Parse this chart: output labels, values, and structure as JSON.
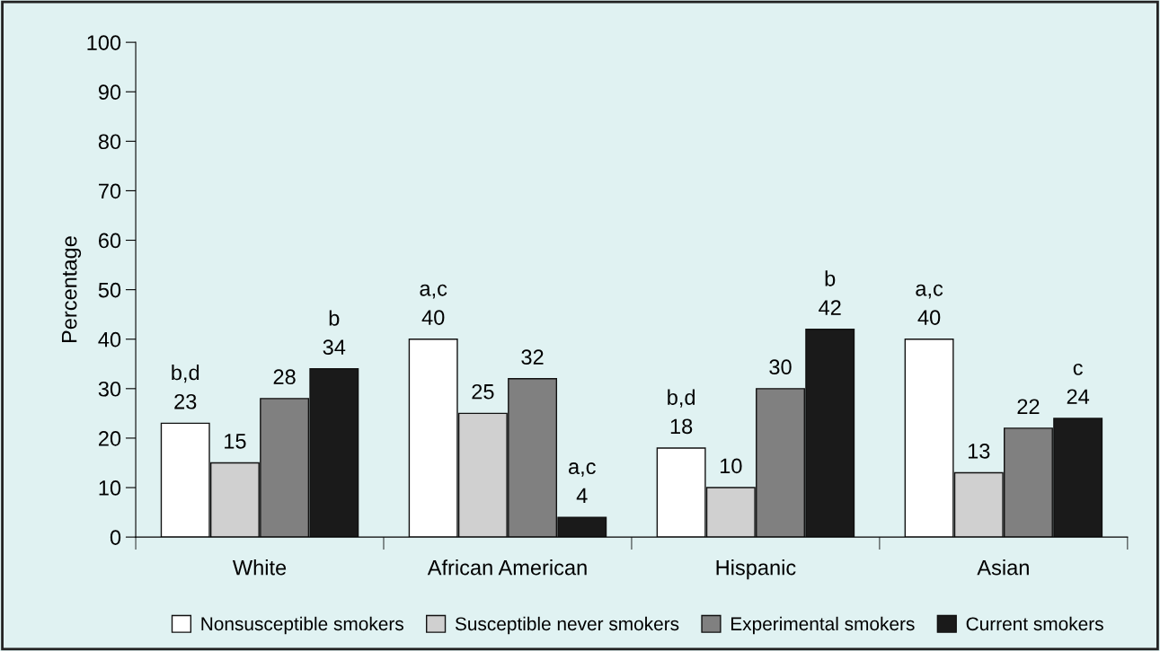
{
  "chart_data": {
    "type": "bar",
    "ylabel": "Percentage",
    "categories": [
      "White",
      "African American",
      "Hispanic",
      "Asian"
    ],
    "series": [
      {
        "name": "Nonsusceptible smokers",
        "color": "#ffffff",
        "values": [
          23,
          40,
          18,
          40
        ],
        "value_labels": [
          "b,d\n23",
          "a,c\n40",
          "b,d\n18",
          "a,c\n40"
        ]
      },
      {
        "name": "Susceptible never smokers",
        "color": "#d0d0d0",
        "values": [
          15,
          25,
          10,
          13
        ],
        "value_labels": [
          "15",
          "25",
          "10",
          "13"
        ]
      },
      {
        "name": "Experimental smokers",
        "color": "#808080",
        "values": [
          28,
          32,
          30,
          22
        ],
        "value_labels": [
          "28",
          "32",
          "30",
          "22"
        ]
      },
      {
        "name": "Current smokers",
        "color": "#1a1a1a",
        "values": [
          34,
          4,
          42,
          24
        ],
        "value_labels": [
          "b\n34",
          "a,c\n4",
          "b\n42",
          "c\n24"
        ]
      }
    ],
    "ylim": [
      0,
      100
    ],
    "yticks": [
      0,
      10,
      20,
      30,
      40,
      50,
      60,
      70,
      80,
      90,
      100
    ],
    "grid": false,
    "legend": "bottom"
  }
}
